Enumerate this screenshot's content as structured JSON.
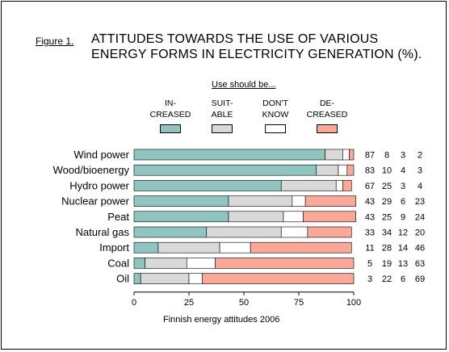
{
  "figure_label": "Figure 1.",
  "title_lines": [
    "ATTITUDES TOWARDS THE USE OF VARIOUS",
    "ENERGY FORMS IN ELECTRICITY GENERATION (%)."
  ],
  "legend_heading": "Use should be...",
  "caption": "Finnish energy attitudes 2006",
  "colors": {
    "increased": "#8fc4c0",
    "suitable": "#d9d9d9",
    "dont_know": "#ffffff",
    "decreased": "#fba898"
  },
  "chart_data": {
    "type": "bar",
    "orientation": "horizontal",
    "stacked": true,
    "title": "ATTITUDES TOWARDS THE USE OF VARIOUS ENERGY FORMS IN ELECTRICITY GENERATION (%).",
    "categories": [
      "Wind power",
      "Wood/bioenergy",
      "Hydro power",
      "Nuclear power",
      "Peat",
      "Natural gas",
      "Import",
      "Coal",
      "Oil"
    ],
    "series": [
      {
        "name": "IN-CREASED",
        "label_lines": [
          "IN-",
          "CREASED"
        ],
        "color": "#8fc4c0",
        "values": [
          87,
          83,
          67,
          43,
          43,
          33,
          11,
          5,
          3
        ]
      },
      {
        "name": "SUIT-ABLE",
        "label_lines": [
          "SUIT-",
          "ABLE"
        ],
        "color": "#d9d9d9",
        "values": [
          8,
          10,
          25,
          29,
          25,
          34,
          28,
          19,
          22
        ]
      },
      {
        "name": "DON'T KNOW",
        "label_lines": [
          "DON'T",
          "KNOW"
        ],
        "color": "#ffffff",
        "values": [
          3,
          4,
          3,
          6,
          9,
          12,
          14,
          13,
          6
        ]
      },
      {
        "name": "DE-CREASED",
        "label_lines": [
          "DE-",
          "CREASED"
        ],
        "color": "#fba898",
        "values": [
          2,
          3,
          4,
          23,
          24,
          20,
          46,
          63,
          69
        ]
      }
    ],
    "xlim": [
      0,
      100
    ],
    "xticks": [
      0,
      25,
      50,
      75,
      100
    ],
    "legend_position": "top",
    "grid": false
  }
}
